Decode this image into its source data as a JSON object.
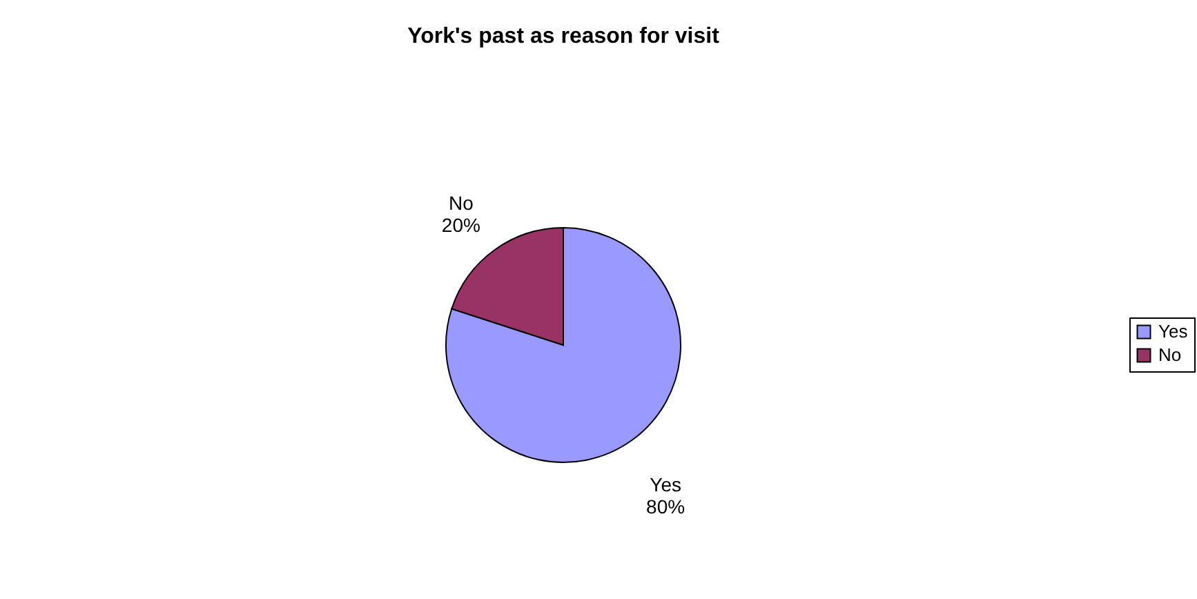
{
  "chart_data": {
    "type": "pie",
    "title": "York's past as reason for visit",
    "categories": [
      "Yes",
      "No"
    ],
    "values": [
      80,
      20
    ],
    "colors": [
      "#9999ff",
      "#993366"
    ],
    "value_labels": [
      "80%",
      "20%"
    ],
    "legend": "right"
  }
}
